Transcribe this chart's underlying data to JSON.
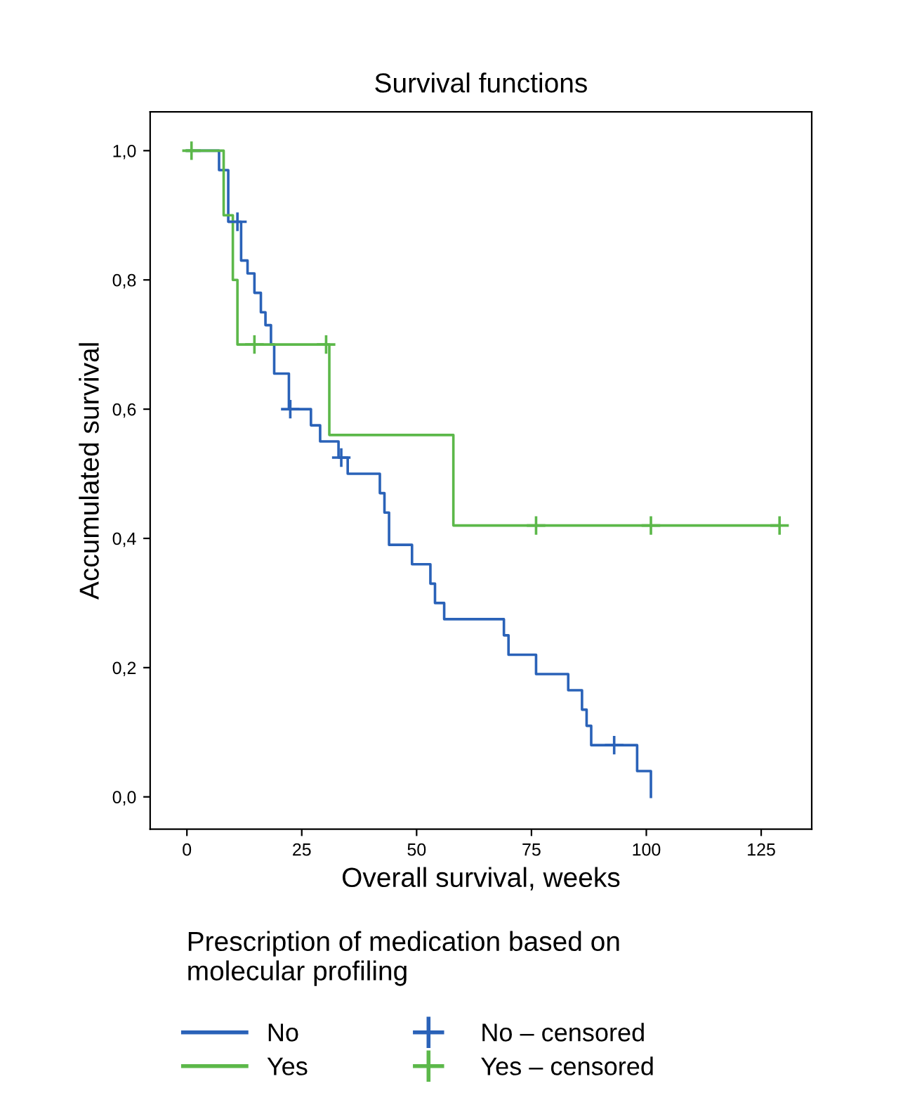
{
  "chart_data": {
    "type": "step",
    "title": "Survival functions",
    "xlabel": "Overall survival, weeks",
    "ylabel": "Accumulated survival",
    "legend_title": "Prescription of medication based on molecular profiling",
    "legend": "bottom",
    "grid": false,
    "xlim": [
      -8,
      136
    ],
    "xticks": [
      0,
      25,
      50,
      75,
      100,
      125
    ],
    "ylim": [
      -0.05,
      1.06
    ],
    "yticks": [
      {
        "value": 0,
        "label": "0,0"
      },
      {
        "value": 0.2,
        "label": "0,2"
      },
      {
        "value": 0.4,
        "label": "0,4"
      },
      {
        "value": 0.6,
        "label": "0,6"
      },
      {
        "value": 0.8,
        "label": "0,8"
      },
      {
        "value": 1.0,
        "label": "1,0"
      }
    ],
    "series": [
      {
        "name": "No",
        "color": "#2a62b8",
        "marker": "none",
        "x": [
          0,
          7,
          9,
          11.8,
          13.2,
          14.7,
          16.1,
          17.1,
          18.3,
          19,
          22.2,
          27,
          29,
          33,
          35,
          42,
          43,
          44,
          49,
          53,
          54,
          56,
          69,
          70,
          76,
          83,
          86,
          87,
          88,
          98,
          101
        ],
        "values": [
          1.0,
          0.97,
          0.89,
          0.83,
          0.81,
          0.78,
          0.75,
          0.73,
          0.7,
          0.655,
          0.6,
          0.575,
          0.55,
          0.525,
          0.5,
          0.47,
          0.44,
          0.39,
          0.36,
          0.33,
          0.3,
          0.275,
          0.25,
          0.22,
          0.19,
          0.165,
          0.135,
          0.11,
          0.08,
          0.04,
          0.0
        ]
      },
      {
        "name": "Yes",
        "color": "#5cb84a",
        "marker": "none",
        "x": [
          0,
          8,
          10,
          11,
          31,
          58,
          129
        ],
        "values": [
          1.0,
          0.9,
          0.8,
          0.7,
          0.56,
          0.42,
          0.42
        ]
      },
      {
        "name": "No – censored",
        "type": "scatter",
        "color": "#2a62b8",
        "marker": "cross",
        "x": [
          11,
          22.5,
          33.6,
          93
        ],
        "values": [
          0.89,
          0.6,
          0.525,
          0.08
        ]
      },
      {
        "name": "Yes – censored",
        "type": "scatter",
        "color": "#5cb84a",
        "marker": "cross",
        "x": [
          1,
          14.7,
          30.3,
          76,
          101,
          129
        ],
        "values": [
          1.0,
          0.7,
          0.7,
          0.42,
          0.42,
          0.42
        ]
      }
    ]
  }
}
